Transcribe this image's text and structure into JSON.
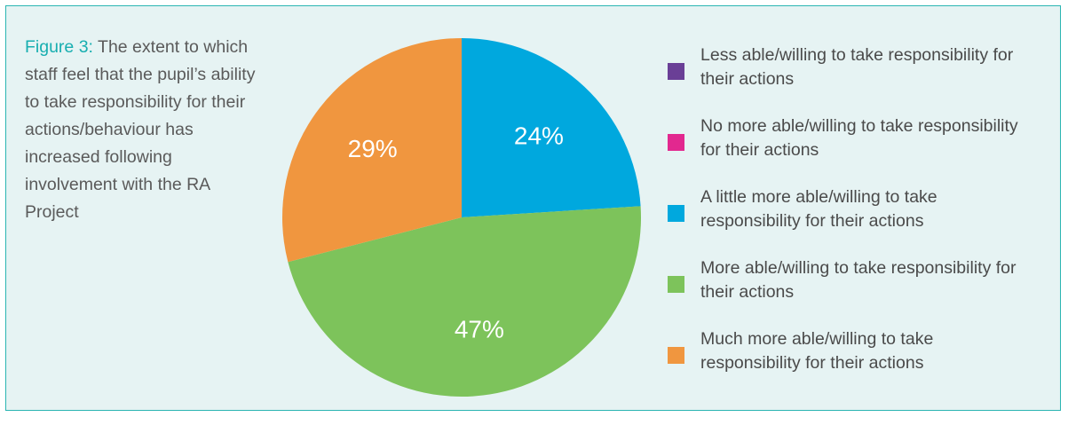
{
  "caption": {
    "figure_label": "Figure 3:",
    "text": "The extent to which staff feel that the pupil’s ability to take responsibility for their actions/behaviour has increased following involvement with the RA Project"
  },
  "chart_data": {
    "type": "pie",
    "categories": [
      "Less able/willing to take responsibility for their actions",
      "No more able/willing to take responsibility for their actions",
      "A little more able/willing to take responsibility for their actions",
      "More able/willing to take responsibility for their actions",
      "Much more able/willing to take responsibility for their actions"
    ],
    "values": [
      0,
      0,
      24,
      47,
      29
    ],
    "labels": [
      "",
      "",
      "24%",
      "47%",
      "29%"
    ],
    "colors": [
      "#6a3f96",
      "#e2288f",
      "#00a8de",
      "#7dc35b",
      "#f0963f"
    ],
    "start": "12 o'clock, clockwise",
    "legend_position": "right"
  }
}
